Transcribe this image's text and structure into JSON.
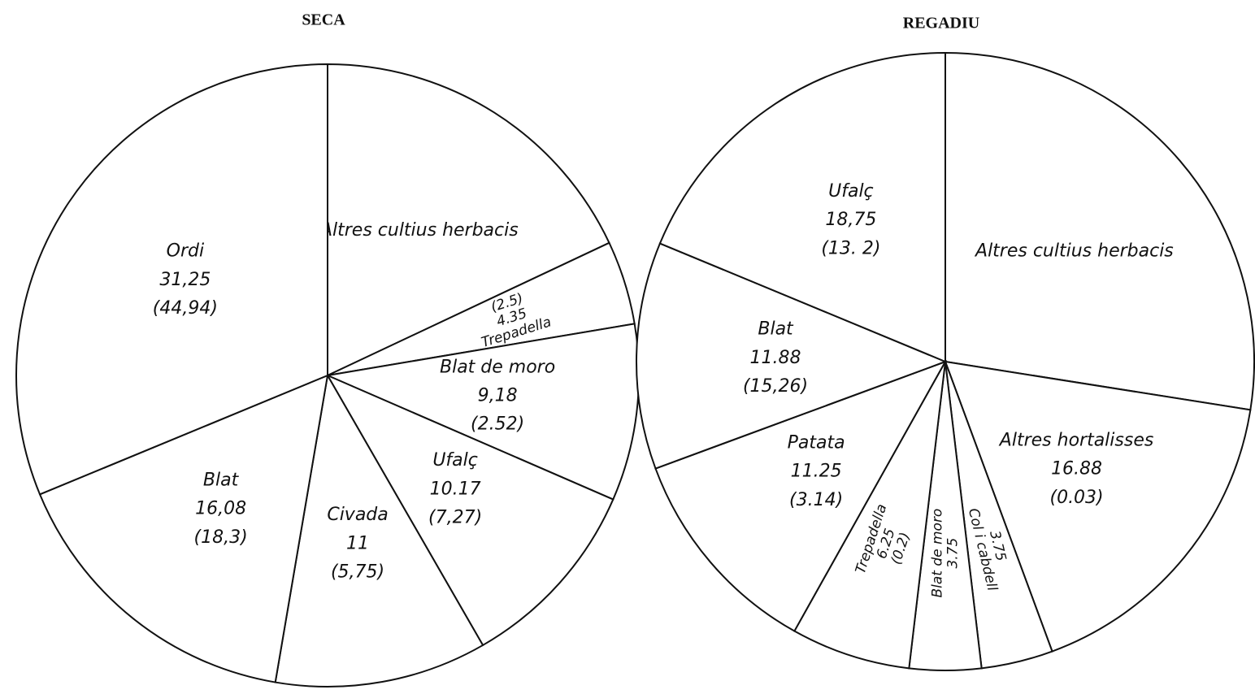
{
  "chart_data": [
    {
      "type": "pie",
      "title": "SECA",
      "categories": [
        "Altres cultius herbacis",
        "Trepadella",
        "Blat de moro",
        "Ufalç",
        "Civada",
        "Blat",
        "Ordi"
      ],
      "values": [
        18,
        4.35,
        9.18,
        10.17,
        11,
        16.08,
        31.25
      ],
      "value_labels": [
        null,
        "4.35",
        "9,18",
        "10.17",
        "11",
        "16,08",
        "31,25"
      ],
      "second_labels": [
        null,
        "(2.5)",
        "(2.52)",
        "(7,27)",
        "(5,75)",
        "(18,3)",
        "(44,94)"
      ],
      "color": "#ffffff"
    },
    {
      "type": "pie",
      "title": "REGADIU",
      "categories": [
        "Altres cultius herbacis",
        "Altres hortalisses",
        "Col i cabdell",
        "Blat de moro",
        "Trepadella",
        "Patata",
        "Blat",
        "Ufalç"
      ],
      "values": [
        27.5,
        16.88,
        3.75,
        3.75,
        6.25,
        11.25,
        11.88,
        18.75
      ],
      "value_labels": [
        null,
        "16.88",
        "3.75",
        "3.75",
        "6.25",
        "11.25",
        "11.88",
        "18,75"
      ],
      "second_labels": [
        null,
        "(0.03)",
        null,
        null,
        "(0.2)",
        "(3.14)",
        "(15,26)",
        "(13. 2)"
      ],
      "color": "#ffffff"
    }
  ]
}
